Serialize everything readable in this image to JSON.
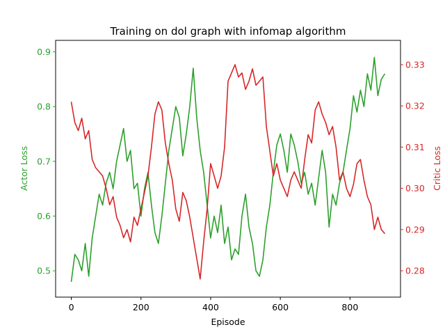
{
  "chart_data": {
    "type": "line",
    "title": "Training on dol graph with infomap algorithm",
    "xlabel": "Episode",
    "xlim": [
      -45,
      945
    ],
    "xticks": [
      0,
      200,
      400,
      600,
      800
    ],
    "grid": false,
    "axes": {
      "left": {
        "label": "Actor Loss",
        "color": "#2ca02c",
        "ylim": [
          0.452,
          0.921
        ],
        "ticks": [
          0.5,
          0.6,
          0.7,
          0.8,
          0.9
        ],
        "tick_labels": [
          "0.5",
          "0.6",
          "0.7",
          "0.8",
          "0.9"
        ]
      },
      "right": {
        "label": "Critic Loss",
        "color": "#d62728",
        "ylim": [
          0.2736,
          0.3359
        ],
        "ticks": [
          0.28,
          0.29,
          0.3,
          0.31,
          0.32,
          0.33
        ],
        "tick_labels": [
          "0.28",
          "0.29",
          "0.30",
          "0.31",
          "0.32",
          "0.33"
        ]
      }
    },
    "series": [
      {
        "axis": "left",
        "color": "#2ca02c",
        "x": [
          0,
          10,
          20,
          30,
          40,
          50,
          60,
          70,
          80,
          90,
          100,
          110,
          120,
          130,
          140,
          150,
          160,
          170,
          180,
          190,
          200,
          210,
          220,
          230,
          240,
          250,
          260,
          270,
          280,
          290,
          300,
          310,
          320,
          330,
          340,
          350,
          360,
          370,
          380,
          390,
          400,
          410,
          420,
          430,
          440,
          450,
          460,
          470,
          480,
          490,
          500,
          510,
          520,
          530,
          540,
          550,
          560,
          570,
          580,
          590,
          600,
          610,
          620,
          630,
          640,
          650,
          660,
          670,
          680,
          690,
          700,
          710,
          720,
          730,
          740,
          750,
          760,
          770,
          780,
          790,
          800,
          810,
          820,
          830,
          840,
          850,
          860,
          870,
          880,
          890,
          900
        ],
        "y": [
          0.48,
          0.53,
          0.52,
          0.5,
          0.55,
          0.49,
          0.56,
          0.6,
          0.64,
          0.62,
          0.66,
          0.68,
          0.65,
          0.7,
          0.73,
          0.76,
          0.7,
          0.72,
          0.65,
          0.66,
          0.6,
          0.65,
          0.68,
          0.62,
          0.57,
          0.55,
          0.6,
          0.66,
          0.72,
          0.76,
          0.8,
          0.78,
          0.71,
          0.75,
          0.8,
          0.87,
          0.78,
          0.72,
          0.68,
          0.62,
          0.56,
          0.6,
          0.57,
          0.62,
          0.55,
          0.58,
          0.52,
          0.54,
          0.53,
          0.6,
          0.64,
          0.58,
          0.55,
          0.5,
          0.49,
          0.52,
          0.58,
          0.62,
          0.68,
          0.73,
          0.75,
          0.72,
          0.68,
          0.75,
          0.73,
          0.7,
          0.66,
          0.68,
          0.64,
          0.66,
          0.62,
          0.67,
          0.72,
          0.68,
          0.58,
          0.64,
          0.62,
          0.66,
          0.68,
          0.72,
          0.76,
          0.82,
          0.79,
          0.83,
          0.8,
          0.86,
          0.83,
          0.89,
          0.82,
          0.85,
          0.86
        ]
      },
      {
        "axis": "right",
        "color": "#d62728",
        "x": [
          0,
          10,
          20,
          30,
          40,
          50,
          60,
          70,
          80,
          90,
          100,
          110,
          120,
          130,
          140,
          150,
          160,
          170,
          180,
          190,
          200,
          210,
          220,
          230,
          240,
          250,
          260,
          270,
          280,
          290,
          300,
          310,
          320,
          330,
          340,
          350,
          360,
          370,
          380,
          390,
          400,
          410,
          420,
          430,
          440,
          450,
          460,
          470,
          480,
          490,
          500,
          510,
          520,
          530,
          540,
          550,
          560,
          570,
          580,
          590,
          600,
          610,
          620,
          630,
          640,
          650,
          660,
          670,
          680,
          690,
          700,
          710,
          720,
          730,
          740,
          750,
          760,
          770,
          780,
          790,
          800,
          810,
          820,
          830,
          840,
          850,
          860,
          870,
          880,
          890,
          900
        ],
        "y": [
          0.321,
          0.316,
          0.314,
          0.317,
          0.312,
          0.314,
          0.307,
          0.305,
          0.304,
          0.303,
          0.3,
          0.296,
          0.298,
          0.293,
          0.291,
          0.288,
          0.29,
          0.287,
          0.293,
          0.291,
          0.295,
          0.299,
          0.303,
          0.31,
          0.318,
          0.321,
          0.319,
          0.311,
          0.306,
          0.302,
          0.295,
          0.292,
          0.299,
          0.297,
          0.293,
          0.288,
          0.283,
          0.278,
          0.287,
          0.295,
          0.306,
          0.303,
          0.3,
          0.303,
          0.31,
          0.326,
          0.328,
          0.33,
          0.327,
          0.328,
          0.324,
          0.326,
          0.329,
          0.325,
          0.326,
          0.327,
          0.315,
          0.309,
          0.303,
          0.306,
          0.302,
          0.3,
          0.298,
          0.302,
          0.304,
          0.302,
          0.3,
          0.307,
          0.313,
          0.311,
          0.319,
          0.321,
          0.318,
          0.316,
          0.313,
          0.315,
          0.31,
          0.302,
          0.304,
          0.3,
          0.298,
          0.301,
          0.306,
          0.307,
          0.302,
          0.298,
          0.296,
          0.29,
          0.293,
          0.29,
          0.289
        ]
      }
    ]
  }
}
